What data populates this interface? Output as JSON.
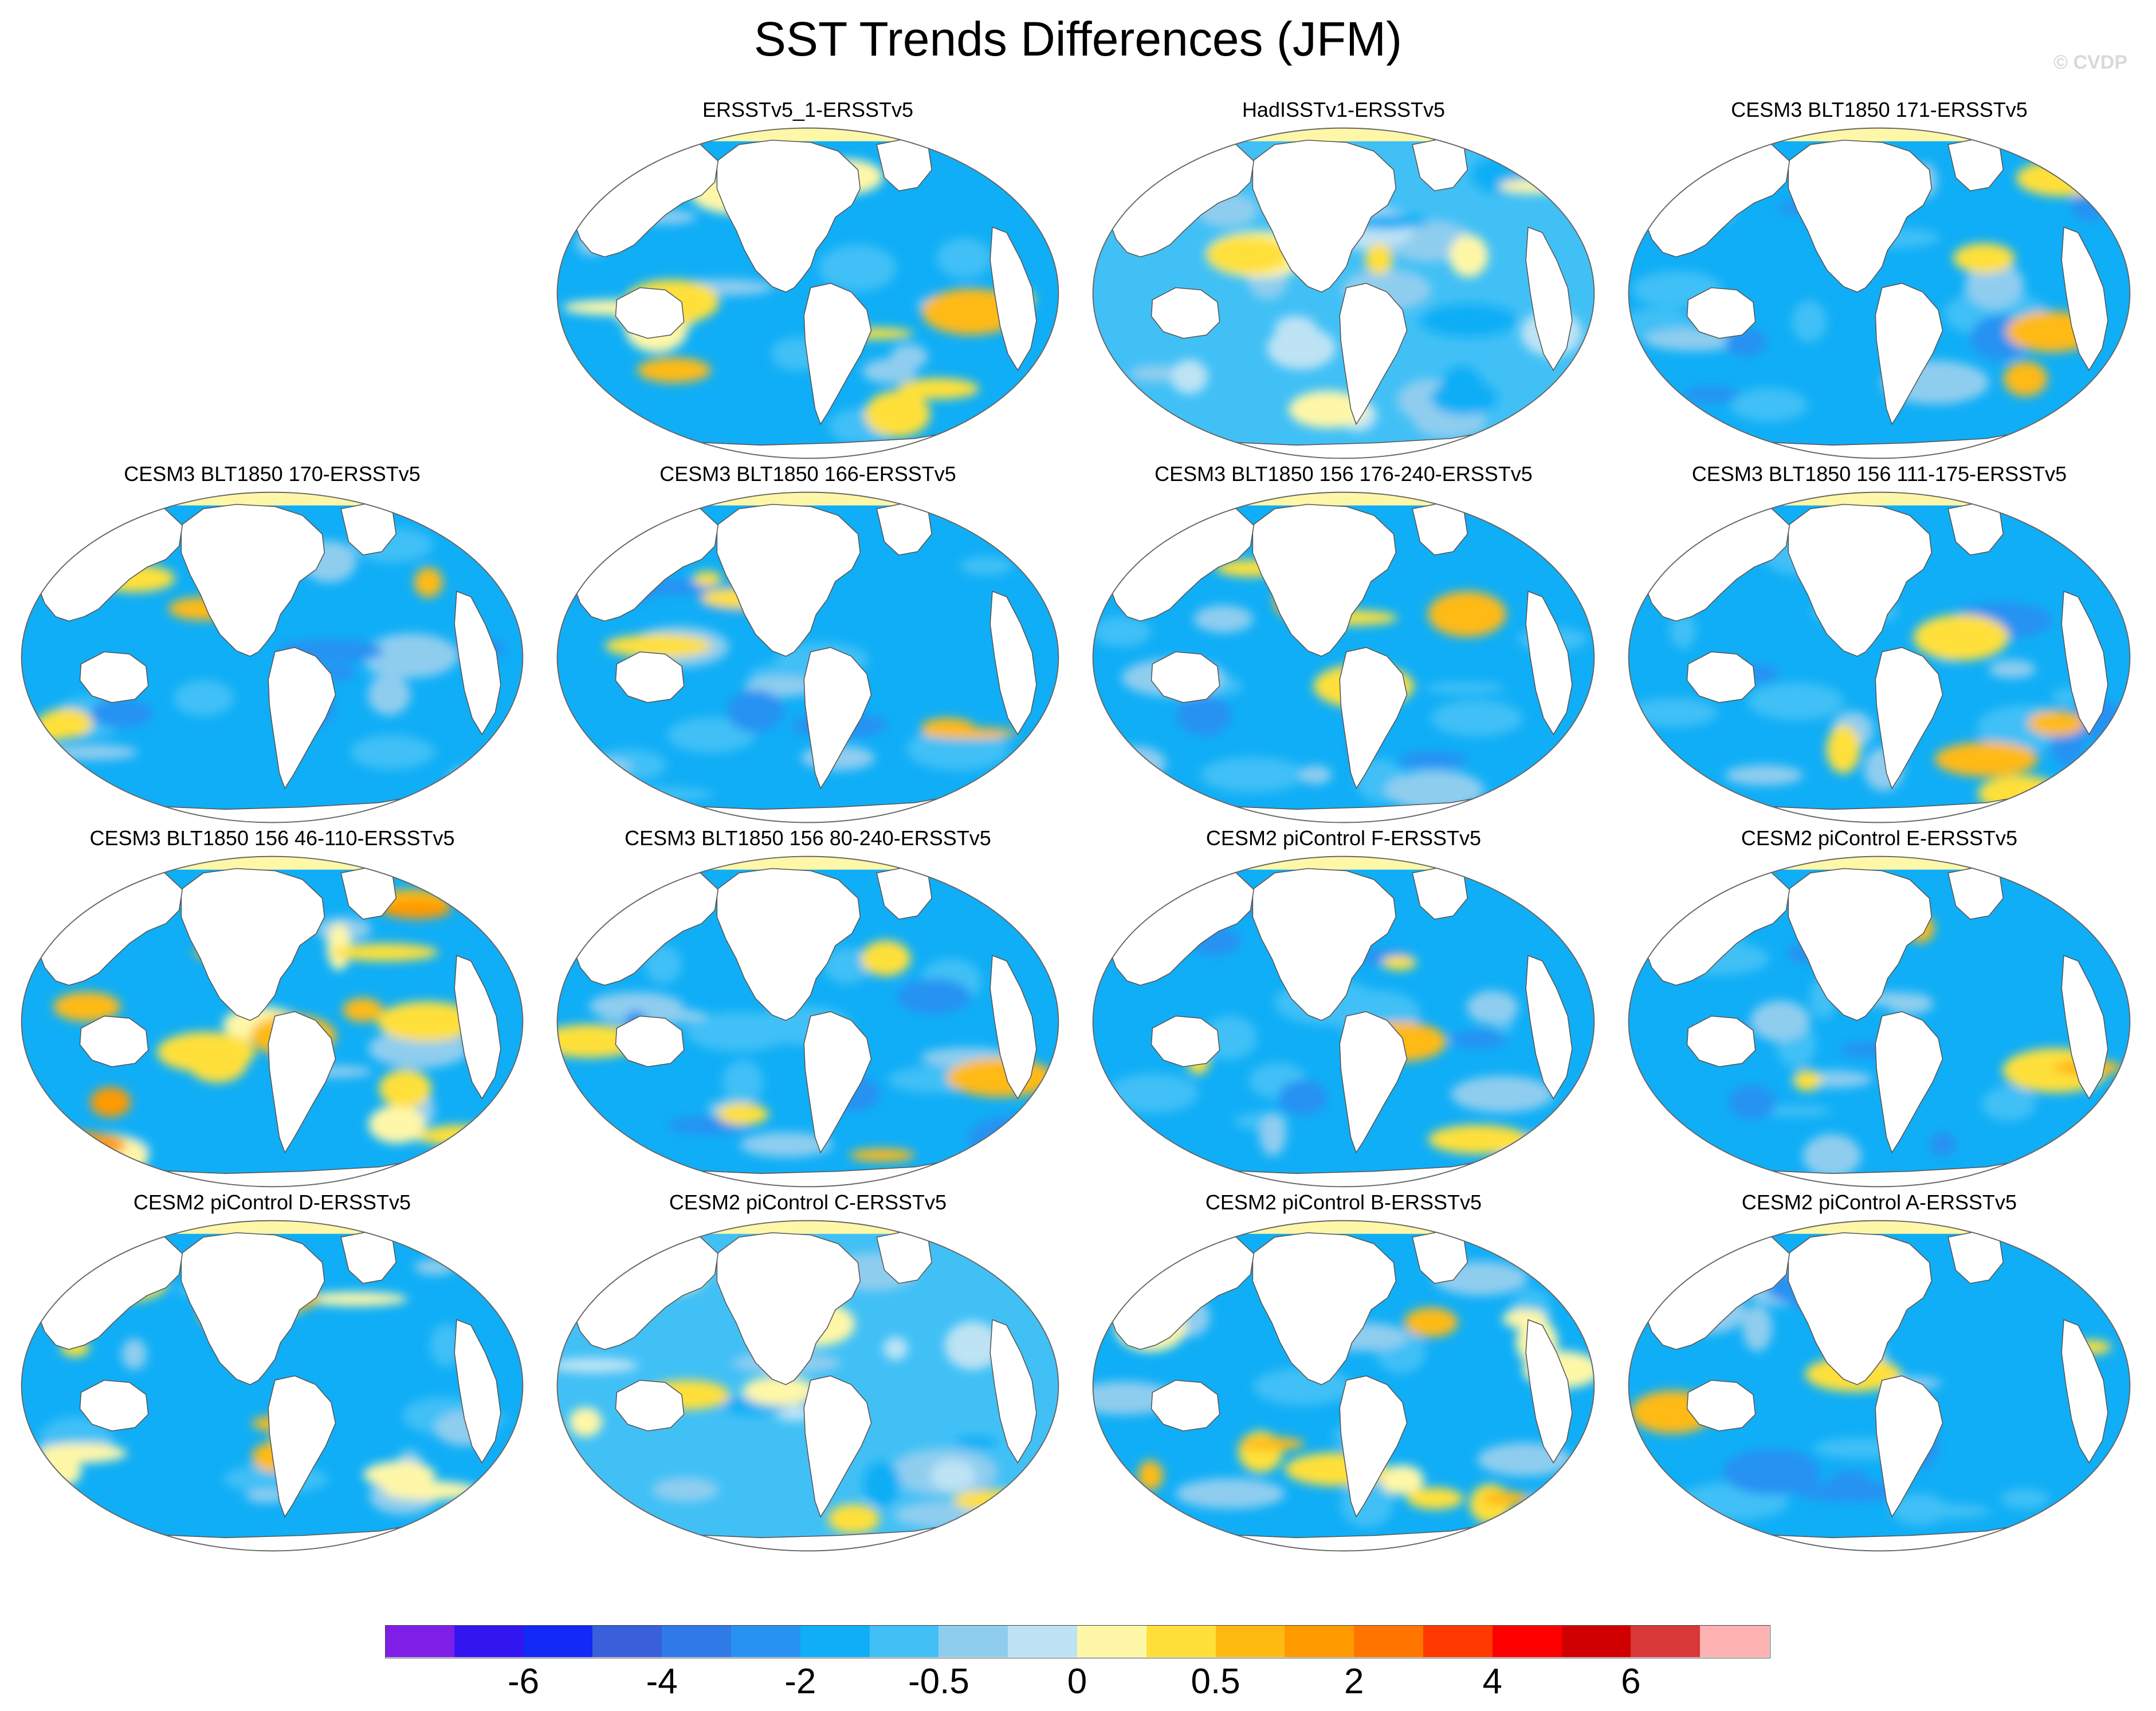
{
  "title": "SST Trends Differences (JFM)",
  "watermark": "© CVDP",
  "panels": [
    {
      "title": "ERSSTv5_1-ERSSTv5",
      "col": 1,
      "row": 0,
      "style": "mixed"
    },
    {
      "title": "HadISSTv1-ERSSTv5",
      "col": 2,
      "row": 0,
      "style": "pale"
    },
    {
      "title": "CESM3 BLT1850 171-ERSSTv5",
      "col": 3,
      "row": 0,
      "style": "blue"
    },
    {
      "title": "CESM3 BLT1850 170-ERSSTv5",
      "col": 0,
      "row": 1,
      "style": "blue"
    },
    {
      "title": "CESM3 BLT1850 166-ERSSTv5",
      "col": 1,
      "row": 1,
      "style": "blue"
    },
    {
      "title": "CESM3 BLT1850 156 176-240-ERSSTv5",
      "col": 2,
      "row": 1,
      "style": "blue"
    },
    {
      "title": "CESM3 BLT1850 156 111-175-ERSSTv5",
      "col": 3,
      "row": 1,
      "style": "blue"
    },
    {
      "title": "CESM3 BLT1850 156 46-110-ERSSTv5",
      "col": 0,
      "row": 2,
      "style": "warm"
    },
    {
      "title": "CESM3 BLT1850 156 80-240-ERSSTv5",
      "col": 1,
      "row": 2,
      "style": "blue"
    },
    {
      "title": "CESM2 piControl F-ERSSTv5",
      "col": 2,
      "row": 2,
      "style": "blue"
    },
    {
      "title": "CESM2 piControl E-ERSSTv5",
      "col": 3,
      "row": 2,
      "style": "blue"
    },
    {
      "title": "CESM2 piControl D-ERSSTv5",
      "col": 0,
      "row": 3,
      "style": "mixed"
    },
    {
      "title": "CESM2 piControl C-ERSSTv5",
      "col": 1,
      "row": 3,
      "style": "pale"
    },
    {
      "title": "CESM2 piControl B-ERSSTv5",
      "col": 2,
      "row": 3,
      "style": "mixed"
    },
    {
      "title": "CESM2 piControl A-ERSSTv5",
      "col": 3,
      "row": 3,
      "style": "blue"
    }
  ],
  "colorbar": {
    "colors": [
      "#7f1ee6",
      "#3316ef",
      "#1329f5",
      "#3a5fdb",
      "#2f7ae6",
      "#2892f2",
      "#10aef6",
      "#41c0f6",
      "#8fcdef",
      "#bde3f4",
      "#fff7a8",
      "#ffe03a",
      "#ffba12",
      "#ff9a00",
      "#ff7500",
      "#ff3a00",
      "#ff0000",
      "#d10000",
      "#d83838",
      "#ffb2b2"
    ],
    "tick_labels": [
      {
        "label": "-6",
        "boundary": 2
      },
      {
        "label": "-4",
        "boundary": 4
      },
      {
        "label": "-2",
        "boundary": 6
      },
      {
        "label": "-0.5",
        "boundary": 8
      },
      {
        "label": "0",
        "boundary": 10
      },
      {
        "label": "0.5",
        "boundary": 12
      },
      {
        "label": "2",
        "boundary": 14
      },
      {
        "label": "4",
        "boundary": 16
      },
      {
        "label": "6",
        "boundary": 18
      }
    ]
  }
}
